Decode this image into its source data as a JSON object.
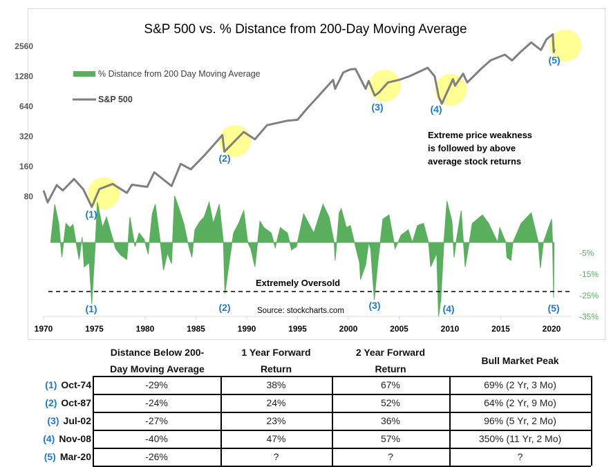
{
  "chart_data": {
    "type": "line+area",
    "title": "S&P 500 vs. % Distance from 200-Day Moving Average",
    "legend": {
      "position": "top-left",
      "entries": [
        "% Distance from 200 Day Moving Average",
        "S&P 500"
      ]
    },
    "x_axis": {
      "ticks": [
        "1970",
        "1975",
        "1980",
        "1985",
        "1990",
        "1995",
        "2000",
        "2005",
        "2010",
        "2015",
        "2020"
      ],
      "range": [
        1970,
        2022.5
      ]
    },
    "left_axis": {
      "scale": "log2",
      "ticks": [
        "2560",
        "1280",
        "640",
        "320",
        "160",
        "80"
      ]
    },
    "right_axis": {
      "ticks": [
        "-5%",
        "-15%",
        "-25%",
        "-35%"
      ],
      "color": "#5aaf5f"
    },
    "colors": {
      "sp500": "#7f7f7f",
      "distance": "#5aaf5f",
      "highlight": "#ffff80",
      "marker_label": "#1f78c8"
    },
    "series": [
      {
        "name": "S&P 500",
        "type": "line",
        "points": [
          [
            1970.0,
            92
          ],
          [
            1970.4,
            70
          ],
          [
            1971.3,
            104
          ],
          [
            1971.9,
            92
          ],
          [
            1973.0,
            120
          ],
          [
            1973.9,
            95
          ],
          [
            1974.75,
            63
          ],
          [
            1975.5,
            95
          ],
          [
            1976.8,
            107
          ],
          [
            1978.2,
            87
          ],
          [
            1978.7,
            105
          ],
          [
            1980.2,
            100
          ],
          [
            1980.9,
            140
          ],
          [
            1982.6,
            102
          ],
          [
            1983.5,
            170
          ],
          [
            1984.5,
            150
          ],
          [
            1985.9,
            210
          ],
          [
            1987.6,
            330
          ],
          [
            1987.8,
            225
          ],
          [
            1989.7,
            355
          ],
          [
            1990.8,
            300
          ],
          [
            1992.0,
            415
          ],
          [
            1994.0,
            460
          ],
          [
            1995.0,
            470
          ],
          [
            1996.0,
            620
          ],
          [
            1997.0,
            800
          ],
          [
            1998.5,
            1180
          ],
          [
            1998.7,
            960
          ],
          [
            1999.5,
            1400
          ],
          [
            2000.2,
            1500
          ],
          [
            2000.7,
            1520
          ],
          [
            2001.7,
            960
          ],
          [
            2002.0,
            1150
          ],
          [
            2002.6,
            820
          ],
          [
            2003.0,
            880
          ],
          [
            2003.9,
            1110
          ],
          [
            2005.0,
            1180
          ],
          [
            2006.0,
            1280
          ],
          [
            2007.8,
            1560
          ],
          [
            2008.5,
            1280
          ],
          [
            2008.9,
            800
          ],
          [
            2009.2,
            680
          ],
          [
            2010.3,
            1200
          ],
          [
            2010.5,
            1030
          ],
          [
            2011.3,
            1360
          ],
          [
            2011.7,
            1110
          ],
          [
            2013.0,
            1500
          ],
          [
            2014.0,
            1850
          ],
          [
            2015.4,
            2110
          ],
          [
            2016.1,
            1850
          ],
          [
            2017.0,
            2270
          ],
          [
            2018.0,
            2800
          ],
          [
            2018.95,
            2350
          ],
          [
            2019.5,
            3000
          ],
          [
            2020.12,
            3380
          ],
          [
            2020.22,
            2240
          ],
          [
            2020.3,
            2400
          ]
        ]
      },
      {
        "name": "% Distance from 200 Day Moving Average",
        "type": "area",
        "points": [
          [
            1970.7,
            0
          ],
          [
            1971.1,
            18
          ],
          [
            1971.5,
            9
          ],
          [
            1971.8,
            -7
          ],
          [
            1972.2,
            9
          ],
          [
            1972.6,
            7
          ],
          [
            1972.9,
            8.5
          ],
          [
            1973.2,
            0
          ],
          [
            1973.5,
            -8
          ],
          [
            1973.8,
            2.5
          ],
          [
            1974.0,
            -11.5
          ],
          [
            1974.5,
            -9.5
          ],
          [
            1974.75,
            -29
          ],
          [
            1975.1,
            0
          ],
          [
            1975.3,
            19
          ],
          [
            1975.8,
            7
          ],
          [
            1976.2,
            12
          ],
          [
            1976.7,
            3.5
          ],
          [
            1977.1,
            -3
          ],
          [
            1977.6,
            -6
          ],
          [
            1978.2,
            -8
          ],
          [
            1978.5,
            12
          ],
          [
            1979.0,
            -2
          ],
          [
            1979.4,
            4.5
          ],
          [
            1979.9,
            1.5
          ],
          [
            1980.3,
            -5.5
          ],
          [
            1980.7,
            13.5
          ],
          [
            1981.0,
            18
          ],
          [
            1981.5,
            0
          ],
          [
            1981.8,
            -13
          ],
          [
            1982.2,
            -5
          ],
          [
            1982.6,
            -10
          ],
          [
            1982.9,
            22
          ],
          [
            1983.3,
            16.5
          ],
          [
            1983.8,
            9
          ],
          [
            1984.2,
            0
          ],
          [
            1984.6,
            -7
          ],
          [
            1984.9,
            6
          ],
          [
            1985.4,
            10
          ],
          [
            1985.8,
            12
          ],
          [
            1986.3,
            19
          ],
          [
            1986.7,
            9
          ],
          [
            1987.3,
            18
          ],
          [
            1987.7,
            0
          ],
          [
            1987.85,
            -24
          ],
          [
            1988.3,
            -8.5
          ],
          [
            1988.7,
            4.5
          ],
          [
            1989.2,
            9
          ],
          [
            1989.7,
            15
          ],
          [
            1990.1,
            0
          ],
          [
            1990.4,
            -3
          ],
          [
            1990.8,
            -11.5
          ],
          [
            1991.3,
            10
          ],
          [
            1991.7,
            7
          ],
          [
            1992.4,
            4.5
          ],
          [
            1992.8,
            -2.5
          ],
          [
            1993.3,
            7
          ],
          [
            1994.0,
            4.5
          ],
          [
            1994.4,
            -3.5
          ],
          [
            1994.9,
            -2
          ],
          [
            1995.6,
            13.5
          ],
          [
            1996.6,
            4.5
          ],
          [
            1997.5,
            18
          ],
          [
            1998.1,
            12
          ],
          [
            1998.6,
            0
          ],
          [
            1998.7,
            -8.5
          ],
          [
            1999.1,
            14
          ],
          [
            1999.3,
            16
          ],
          [
            1999.8,
            7
          ],
          [
            2000.2,
            8
          ],
          [
            2000.6,
            0
          ],
          [
            2001.1,
            -9.5
          ],
          [
            2001.2,
            -17.5
          ],
          [
            2001.7,
            -10.5
          ],
          [
            2002.0,
            0
          ],
          [
            2002.2,
            -3
          ],
          [
            2002.55,
            -27
          ],
          [
            2002.9,
            -9.5
          ],
          [
            2003.4,
            11
          ],
          [
            2004.0,
            13
          ],
          [
            2004.5,
            0
          ],
          [
            2004.6,
            -3
          ],
          [
            2005.2,
            3.5
          ],
          [
            2005.9,
            6
          ],
          [
            2006.3,
            0
          ],
          [
            2006.8,
            8
          ],
          [
            2007.4,
            9
          ],
          [
            2007.9,
            0
          ],
          [
            2008.1,
            -11.5
          ],
          [
            2008.7,
            -5
          ],
          [
            2008.88,
            -40
          ],
          [
            2009.1,
            -27
          ],
          [
            2009.4,
            0
          ],
          [
            2009.7,
            19.5
          ],
          [
            2010.2,
            10
          ],
          [
            2010.4,
            -7
          ],
          [
            2010.6,
            0
          ],
          [
            2011.1,
            15
          ],
          [
            2011.5,
            -11.5
          ],
          [
            2011.9,
            0
          ],
          [
            2012.2,
            9
          ],
          [
            2013.2,
            13
          ],
          [
            2013.8,
            9
          ],
          [
            2014.7,
            0
          ],
          [
            2014.9,
            7
          ],
          [
            2015.5,
            0
          ],
          [
            2015.6,
            -7
          ],
          [
            2016.0,
            -8.5
          ],
          [
            2016.2,
            0
          ],
          [
            2017.0,
            9
          ],
          [
            2018.0,
            14
          ],
          [
            2018.7,
            0
          ],
          [
            2018.9,
            -12
          ],
          [
            2019.2,
            0
          ],
          [
            2020.0,
            11
          ],
          [
            2020.1,
            0
          ],
          [
            2020.2,
            -26
          ],
          [
            2020.25,
            0
          ]
        ]
      }
    ],
    "oversold_line": {
      "value": -24,
      "label": "Extremely Oversold"
    },
    "annotations": {
      "note": [
        "Extreme price weakness",
        "is followed by above",
        "average stock returns"
      ],
      "source": "Source: stockcharts.com",
      "markers": [
        "(1)",
        "(2)",
        "(3)",
        "(4)",
        "(5)"
      ]
    }
  },
  "table": {
    "headers": [
      [
        "Distance Below 200-",
        "Day Moving Average"
      ],
      [
        "1 Year Forward",
        "Return"
      ],
      [
        "2 Year Forward",
        "Return"
      ],
      [
        "Bull Market Peak"
      ]
    ],
    "rows": [
      {
        "num": "(1)",
        "date": "Oct-74",
        "distance": "-29%",
        "one_year": "38%",
        "two_year": "67%",
        "peak": "69% (2 Yr, 3 Mo)"
      },
      {
        "num": "(2)",
        "date": "Oct-87",
        "distance": "-24%",
        "one_year": "24%",
        "two_year": "52%",
        "peak": "64% (2 Yr, 9 Mo)"
      },
      {
        "num": "(3)",
        "date": "Jul-02",
        "distance": "-27%",
        "one_year": "23%",
        "two_year": "36%",
        "peak": "96% (5 Yr, 2 Mo)"
      },
      {
        "num": "(4)",
        "date": "Nov-08",
        "distance": "-40%",
        "one_year": "47%",
        "two_year": "57%",
        "peak": "350% (11 Yr, 2 Mo)"
      },
      {
        "num": "(5)",
        "date": "Mar-20",
        "distance": "-26%",
        "one_year": "?",
        "two_year": "?",
        "peak": "?"
      }
    ]
  }
}
